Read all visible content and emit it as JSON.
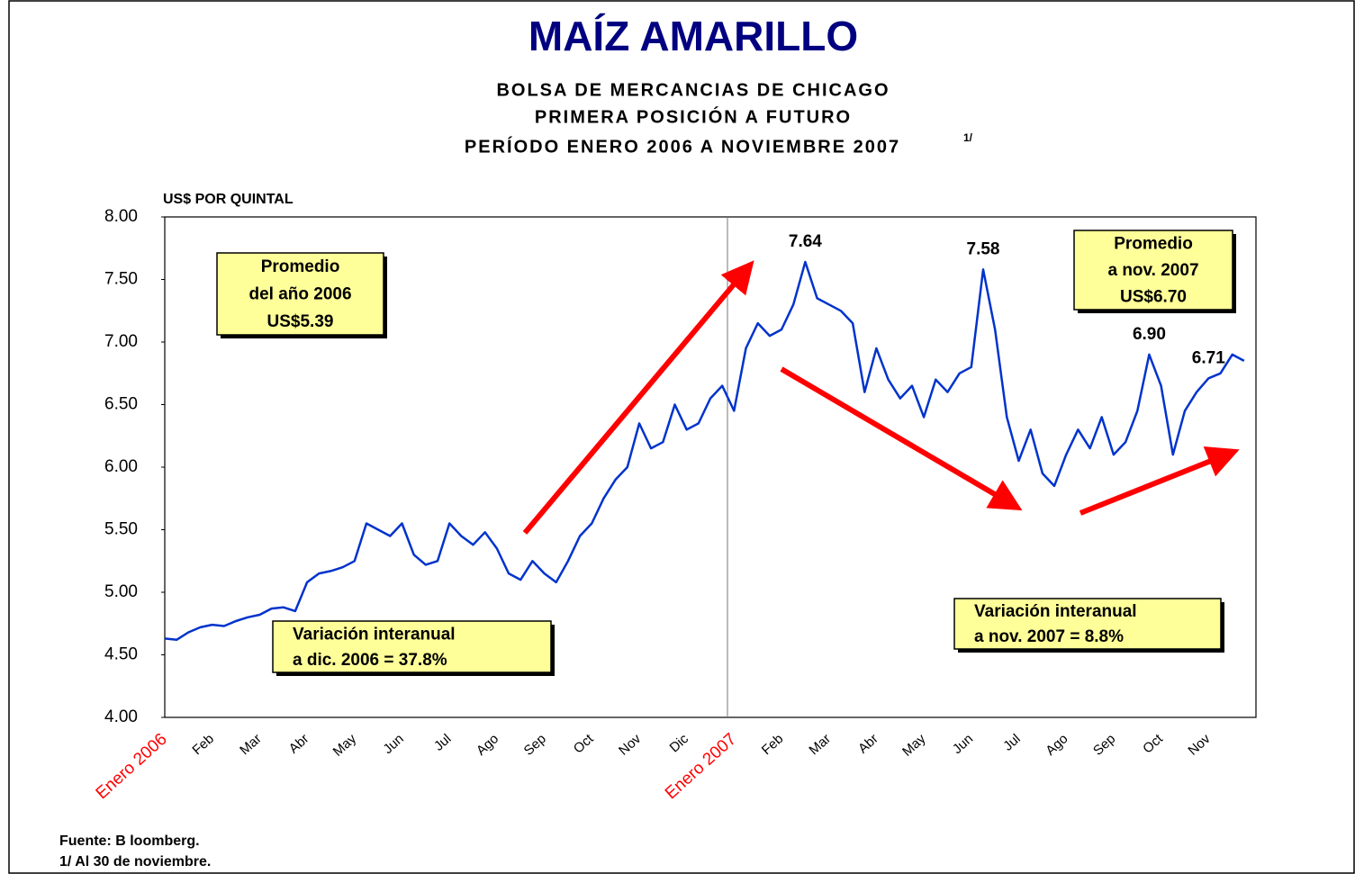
{
  "chart_data": {
    "type": "line",
    "title": "MAÍZ AMARILLO",
    "subtitle": [
      "BOLSA DE MERCANCIAS DE CHICAGO",
      "PRIMERA POSICIÓN A FUTURO",
      "PERÍODO ENERO 2006 A NOVIEMBRE 2007"
    ],
    "subtitle_note": "1/",
    "y_label": "US$ POR QUINTAL",
    "color": "#0033cc",
    "categories": [
      "Enero 2006",
      null,
      null,
      null,
      "Feb",
      null,
      null,
      null,
      "Mar",
      null,
      null,
      null,
      "Abr",
      null,
      null,
      null,
      "May",
      null,
      null,
      null,
      "Jun",
      null,
      null,
      null,
      "Jul",
      null,
      null,
      null,
      "Ago",
      null,
      null,
      null,
      "Sep",
      null,
      null,
      null,
      "Oct",
      null,
      null,
      null,
      "Nov",
      null,
      null,
      null,
      "Dic",
      null,
      null,
      null,
      "Enero 2007",
      null,
      null,
      null,
      "Feb",
      null,
      null,
      null,
      "Mar",
      null,
      null,
      null,
      "Abr",
      null,
      null,
      null,
      "May",
      null,
      null,
      null,
      "Jun",
      null,
      null,
      null,
      "Jul",
      null,
      null,
      null,
      "Ago",
      null,
      null,
      null,
      "Sep",
      null,
      null,
      null,
      "Oct",
      null,
      null,
      null,
      "Nov",
      null,
      null,
      null
    ],
    "values": [
      4.63,
      4.62,
      4.68,
      4.72,
      4.74,
      4.73,
      4.77,
      4.8,
      4.82,
      4.87,
      4.88,
      4.85,
      5.08,
      5.15,
      5.17,
      5.2,
      5.25,
      5.55,
      5.5,
      5.45,
      5.55,
      5.3,
      5.22,
      5.25,
      5.55,
      5.45,
      5.38,
      5.48,
      5.35,
      5.15,
      5.1,
      5.25,
      5.15,
      5.08,
      5.25,
      5.45,
      5.55,
      5.75,
      5.9,
      6.0,
      6.35,
      6.15,
      6.2,
      6.5,
      6.3,
      6.35,
      6.55,
      6.65,
      6.45,
      6.95,
      7.15,
      7.05,
      7.1,
      7.3,
      7.64,
      7.35,
      7.3,
      7.25,
      7.15,
      6.6,
      6.95,
      6.7,
      6.55,
      6.65,
      6.4,
      6.7,
      6.6,
      6.75,
      6.8,
      7.58,
      7.1,
      6.4,
      6.05,
      6.3,
      5.95,
      5.85,
      6.1,
      6.3,
      6.15,
      6.4,
      6.1,
      6.2,
      6.45,
      6.9,
      6.65,
      6.1,
      6.45,
      6.6,
      6.71,
      6.75,
      6.9,
      6.85
    ],
    "value_labels": [
      null,
      null,
      null,
      null,
      null,
      null,
      null,
      null,
      null,
      null,
      null,
      null,
      null,
      null,
      null,
      null,
      null,
      null,
      null,
      null,
      null,
      null,
      null,
      null,
      null,
      null,
      null,
      null,
      null,
      null,
      null,
      null,
      null,
      null,
      null,
      null,
      null,
      null,
      null,
      null,
      null,
      null,
      null,
      null,
      null,
      null,
      null,
      null,
      null,
      null,
      null,
      null,
      null,
      null,
      "7.64",
      null,
      null,
      null,
      null,
      null,
      null,
      null,
      null,
      null,
      null,
      null,
      null,
      null,
      null,
      "7.58",
      null,
      null,
      null,
      null,
      null,
      null,
      null,
      null,
      null,
      null,
      null,
      null,
      null,
      "6.90",
      null,
      null,
      null,
      null,
      "6.71",
      null,
      null,
      null
    ],
    "ylim": [
      4,
      8
    ],
    "yticks": [
      {
        "value": 4,
        "label": "4.00"
      },
      {
        "value": 4.5,
        "label": "4.50"
      },
      {
        "value": 5,
        "label": "5.00"
      },
      {
        "value": 5.5,
        "label": "5.50"
      },
      {
        "value": 6,
        "label": "6.00"
      },
      {
        "value": 6.5,
        "label": "6.50"
      },
      {
        "value": 7,
        "label": "7.00"
      },
      {
        "value": 7.5,
        "label": "7.50"
      },
      {
        "value": 8,
        "label": "8.00"
      }
    ],
    "annotations": [
      [
        "Promedio",
        "del año 2006",
        "US$5.39"
      ],
      [
        "Variación interanual",
        "a dic. 2006 = 37.8%"
      ],
      [
        "Variación interanual",
        "a nov. 2007 = 8.8%"
      ],
      [
        "Promedio",
        "a nov. 2007",
        "US$6.70"
      ]
    ],
    "notes": [
      "Fuente: B loomberg.",
      "1/ Al 30 de noviembre."
    ]
  }
}
